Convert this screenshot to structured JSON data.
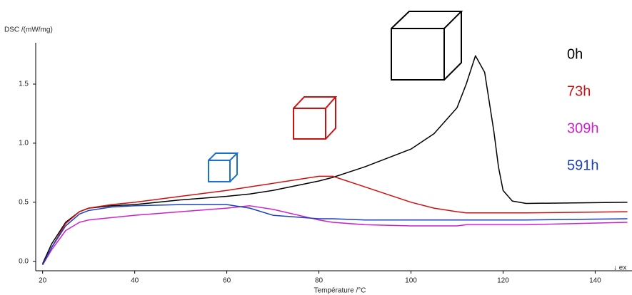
{
  "chart_data": {
    "type": "line",
    "y_label": "DSC /(mW/mg)",
    "x_label": "Température /°C",
    "annotation": "↓ ex",
    "x": [
      20,
      22,
      25,
      28,
      30,
      35,
      40,
      50,
      60,
      65,
      70,
      80,
      83,
      90,
      100,
      105,
      110,
      112,
      114,
      116,
      118,
      119,
      120,
      122,
      125,
      147
    ],
    "series": [
      {
        "name": "0h",
        "color": "#000000",
        "values": [
          -0.02,
          0.15,
          0.33,
          0.42,
          0.45,
          0.47,
          0.48,
          0.52,
          0.55,
          0.57,
          0.6,
          0.68,
          0.71,
          0.8,
          0.95,
          1.08,
          1.3,
          1.5,
          1.74,
          1.6,
          1.1,
          0.8,
          0.6,
          0.51,
          0.49,
          0.5
        ]
      },
      {
        "name": "73h",
        "color": "#cc1111",
        "values": [
          -0.03,
          0.12,
          0.32,
          0.42,
          0.45,
          0.48,
          0.5,
          0.55,
          0.6,
          0.63,
          0.66,
          0.72,
          0.72,
          0.63,
          0.5,
          0.45,
          0.42,
          0.41,
          0.41,
          0.41,
          0.41,
          0.41,
          0.41,
          0.41,
          0.41,
          0.42
        ]
      },
      {
        "name": "309h",
        "color": "#cc22cc",
        "values": [
          -0.03,
          0.1,
          0.26,
          0.33,
          0.35,
          0.37,
          0.39,
          0.42,
          0.45,
          0.47,
          0.44,
          0.35,
          0.33,
          0.31,
          0.3,
          0.3,
          0.3,
          0.31,
          0.31,
          0.31,
          0.31,
          0.31,
          0.31,
          0.31,
          0.31,
          0.33
        ]
      },
      {
        "name": "591h",
        "color": "#1a3fbf",
        "values": [
          -0.03,
          0.12,
          0.3,
          0.4,
          0.43,
          0.46,
          0.47,
          0.48,
          0.48,
          0.45,
          0.39,
          0.36,
          0.36,
          0.35,
          0.35,
          0.35,
          0.35,
          0.35,
          0.35,
          0.35,
          0.35,
          0.35,
          0.35,
          0.35,
          0.35,
          0.36
        ]
      }
    ],
    "xlim": [
      18.5,
      148
    ],
    "ylim": [
      -0.08,
      1.85
    ],
    "xticks": [
      20,
      40,
      60,
      80,
      100,
      120,
      140
    ],
    "yticks": [
      {
        "value": 0,
        "label": "0.0"
      },
      {
        "value": 0.5,
        "label": "0.5"
      },
      {
        "value": 1,
        "label": "1.0"
      },
      {
        "value": 1.5,
        "label": "1.5"
      }
    ],
    "grid": false
  }
}
